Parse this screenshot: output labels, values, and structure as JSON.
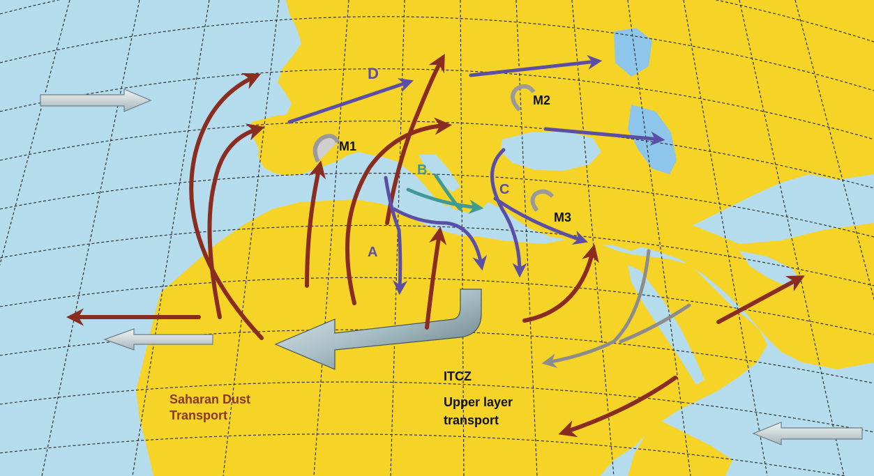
{
  "labels": {
    "route_a": "A",
    "route_b": "B",
    "route_c": "C",
    "route_d": "D",
    "cell_m1": "M1",
    "cell_m2": "M2",
    "cell_m3": "M3",
    "itcz": "ITCZ",
    "upper_line1": "Upper layer",
    "upper_line2": "transport",
    "saharan_line1": "Saharan Dust",
    "saharan_line2": "Transport"
  },
  "colors": {
    "sea": "#b5dcec",
    "land": "#f5d327",
    "lake": "#8ec5ea",
    "dust_arrow": "#8a2c20",
    "route_arrow": "#5b4ea6",
    "route_b_arrow": "#3f9a95",
    "gray_arrow": "#8c8c8c",
    "grid": "#222222",
    "saharan_label": "#8a3a22"
  }
}
